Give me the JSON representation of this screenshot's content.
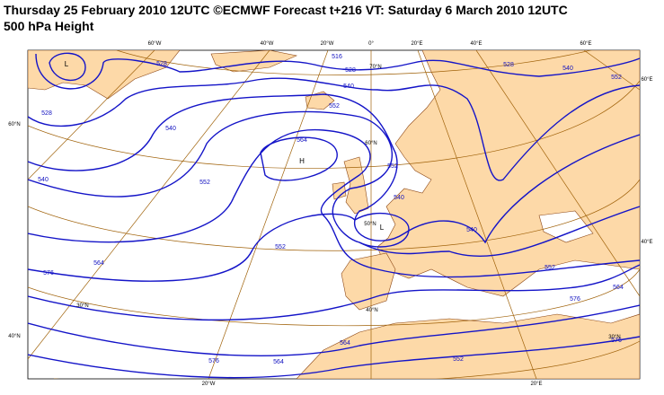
{
  "header": {
    "title": "Thursday 25 February 2010 12UTC ©ECMWF Forecast t+216 VT: Saturday 6 March 2010 12UTC",
    "subtitle": "500 hPa Height"
  },
  "map": {
    "graticule_labels": [
      "60°W",
      "40°W",
      "20°W",
      "0°",
      "20°E",
      "40°E",
      "60°E",
      "60°E",
      "40°E",
      "60°N",
      "40°N",
      "20°W",
      "20°E",
      "70°N",
      "60°N",
      "50°N",
      "40°N",
      "30°N",
      "30°N"
    ],
    "contour_labels": [
      "528",
      "516",
      "528",
      "540",
      "552",
      "564",
      "552",
      "540",
      "528",
      "540",
      "540",
      "552",
      "564",
      "576",
      "552",
      "564",
      "576",
      "540",
      "552",
      "528",
      "540",
      "552",
      "564",
      "576",
      "552",
      "564",
      "576"
    ],
    "centers": [
      "L",
      "H",
      "L"
    ]
  }
}
